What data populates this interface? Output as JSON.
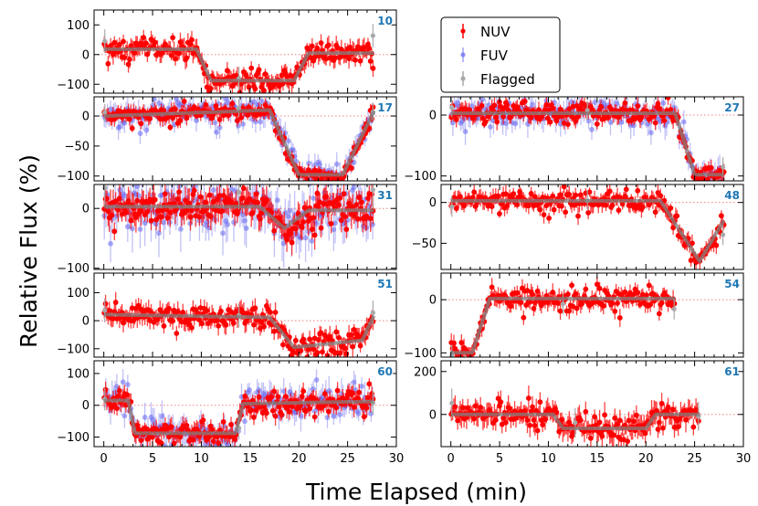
{
  "figure": {
    "ylabel": "Relative Flux (%)",
    "xlabel": "Time Elapsed (min)",
    "colors": {
      "nuv": "#ff0000",
      "fuv": "#6666ee",
      "flagged": "#a9a9a9",
      "model": "#808080",
      "label": "#1f77b4",
      "zero_line": "#f08080"
    }
  },
  "legend": {
    "entries": [
      {
        "label": "NUV",
        "color": "#ff0000"
      },
      {
        "label": "FUV",
        "color": "#6666ee"
      },
      {
        "label": "Flagged",
        "color": "#a9a9a9"
      }
    ]
  },
  "chart_data": [
    {
      "type": "scatter",
      "label": "10",
      "column": "left",
      "row": 0,
      "xlim": [
        -1,
        30
      ],
      "ylim": [
        -130,
        150
      ],
      "yticks": [
        100,
        0,
        -100
      ],
      "show_x_ticklabels": false,
      "model": [
        [
          0,
          18
        ],
        [
          9.5,
          18
        ],
        [
          11,
          -88
        ],
        [
          19.5,
          -88
        ],
        [
          21,
          5
        ],
        [
          27.7,
          5
        ]
      ],
      "noise": 22,
      "fuv": false
    },
    {
      "type": "scatter",
      "label": "17",
      "column": "left",
      "row": 1,
      "xlim": [
        -1,
        30
      ],
      "ylim": [
        -108,
        32
      ],
      "yticks": [
        0,
        -50,
        -100
      ],
      "show_x_ticklabels": false,
      "model": [
        [
          0,
          0
        ],
        [
          17,
          10
        ],
        [
          20,
          -98
        ],
        [
          24.5,
          -98
        ],
        [
          27.7,
          8
        ]
      ],
      "noise": 8,
      "fuv": true
    },
    {
      "type": "scatter",
      "label": "31",
      "column": "left",
      "row": 2,
      "xlim": [
        -1,
        30
      ],
      "ylim": [
        -102,
        40
      ],
      "yticks": [
        0,
        -100
      ],
      "show_x_ticklabels": false,
      "model": [
        [
          0,
          3
        ],
        [
          16,
          3
        ],
        [
          18.5,
          -33
        ],
        [
          21,
          -3
        ],
        [
          27.7,
          -3
        ]
      ],
      "noise": 16,
      "fuv": true
    },
    {
      "type": "scatter",
      "label": "51",
      "column": "left",
      "row": 3,
      "xlim": [
        -1,
        30
      ],
      "ylim": [
        -130,
        170
      ],
      "yticks": [
        100,
        0,
        -100
      ],
      "show_x_ticklabels": false,
      "model": [
        [
          0,
          22
        ],
        [
          17,
          12
        ],
        [
          19.5,
          -95
        ],
        [
          26.5,
          -70
        ],
        [
          27.7,
          18
        ]
      ],
      "noise": 24,
      "fuv": false
    },
    {
      "type": "scatter",
      "label": "60",
      "column": "left",
      "row": 4,
      "xlim": [
        -1,
        30
      ],
      "ylim": [
        -130,
        140
      ],
      "yticks": [
        100,
        0,
        -100
      ],
      "show_x_ticklabels": true,
      "xticks": [
        0,
        5,
        10,
        15,
        20,
        25,
        30
      ],
      "model": [
        [
          0,
          15
        ],
        [
          2.5,
          15
        ],
        [
          3.2,
          -88
        ],
        [
          13.5,
          -88
        ],
        [
          14.3,
          5
        ],
        [
          27.7,
          12
        ]
      ],
      "noise": 20,
      "fuv": true
    },
    {
      "type": "scatter",
      "label": "27",
      "column": "right",
      "row": 1,
      "xlim": [
        -1,
        30
      ],
      "ylim": [
        -108,
        30
      ],
      "yticks": [
        0,
        -100
      ],
      "show_x_ticklabels": false,
      "model": [
        [
          0,
          3
        ],
        [
          23,
          3
        ],
        [
          25,
          -98
        ],
        [
          28,
          -98
        ]
      ],
      "noise": 9,
      "fuv": true
    },
    {
      "type": "scatter",
      "label": "48",
      "column": "right",
      "row": 2,
      "xlim": [
        -1,
        30
      ],
      "ylim": [
        -82,
        22
      ],
      "yticks": [
        0,
        -50
      ],
      "show_x_ticklabels": false,
      "model": [
        [
          0,
          2
        ],
        [
          21.5,
          2
        ],
        [
          25.5,
          -72
        ],
        [
          28,
          -22
        ]
      ],
      "noise": 7,
      "fuv": false
    },
    {
      "type": "scatter",
      "label": "54",
      "column": "right",
      "row": 3,
      "xlim": [
        -1,
        30
      ],
      "ylim": [
        -108,
        50
      ],
      "yticks": [
        0,
        -100
      ],
      "show_x_ticklabels": false,
      "model": [
        [
          0,
          -100
        ],
        [
          2.2,
          -100
        ],
        [
          4,
          2
        ],
        [
          23,
          2
        ]
      ],
      "noise": 11,
      "fuv": false
    },
    {
      "type": "scatter",
      "label": "61",
      "column": "right",
      "row": 4,
      "xlim": [
        -1,
        30
      ],
      "ylim": [
        -150,
        250
      ],
      "yticks": [
        200,
        0
      ],
      "show_x_ticklabels": true,
      "xticks": [
        0,
        5,
        10,
        15,
        20,
        25,
        30
      ],
      "model": [
        [
          0,
          0
        ],
        [
          10.5,
          0
        ],
        [
          11.5,
          -65
        ],
        [
          20,
          -65
        ],
        [
          21,
          0
        ],
        [
          25.5,
          0
        ]
      ],
      "noise": 38,
      "fuv": false
    }
  ]
}
